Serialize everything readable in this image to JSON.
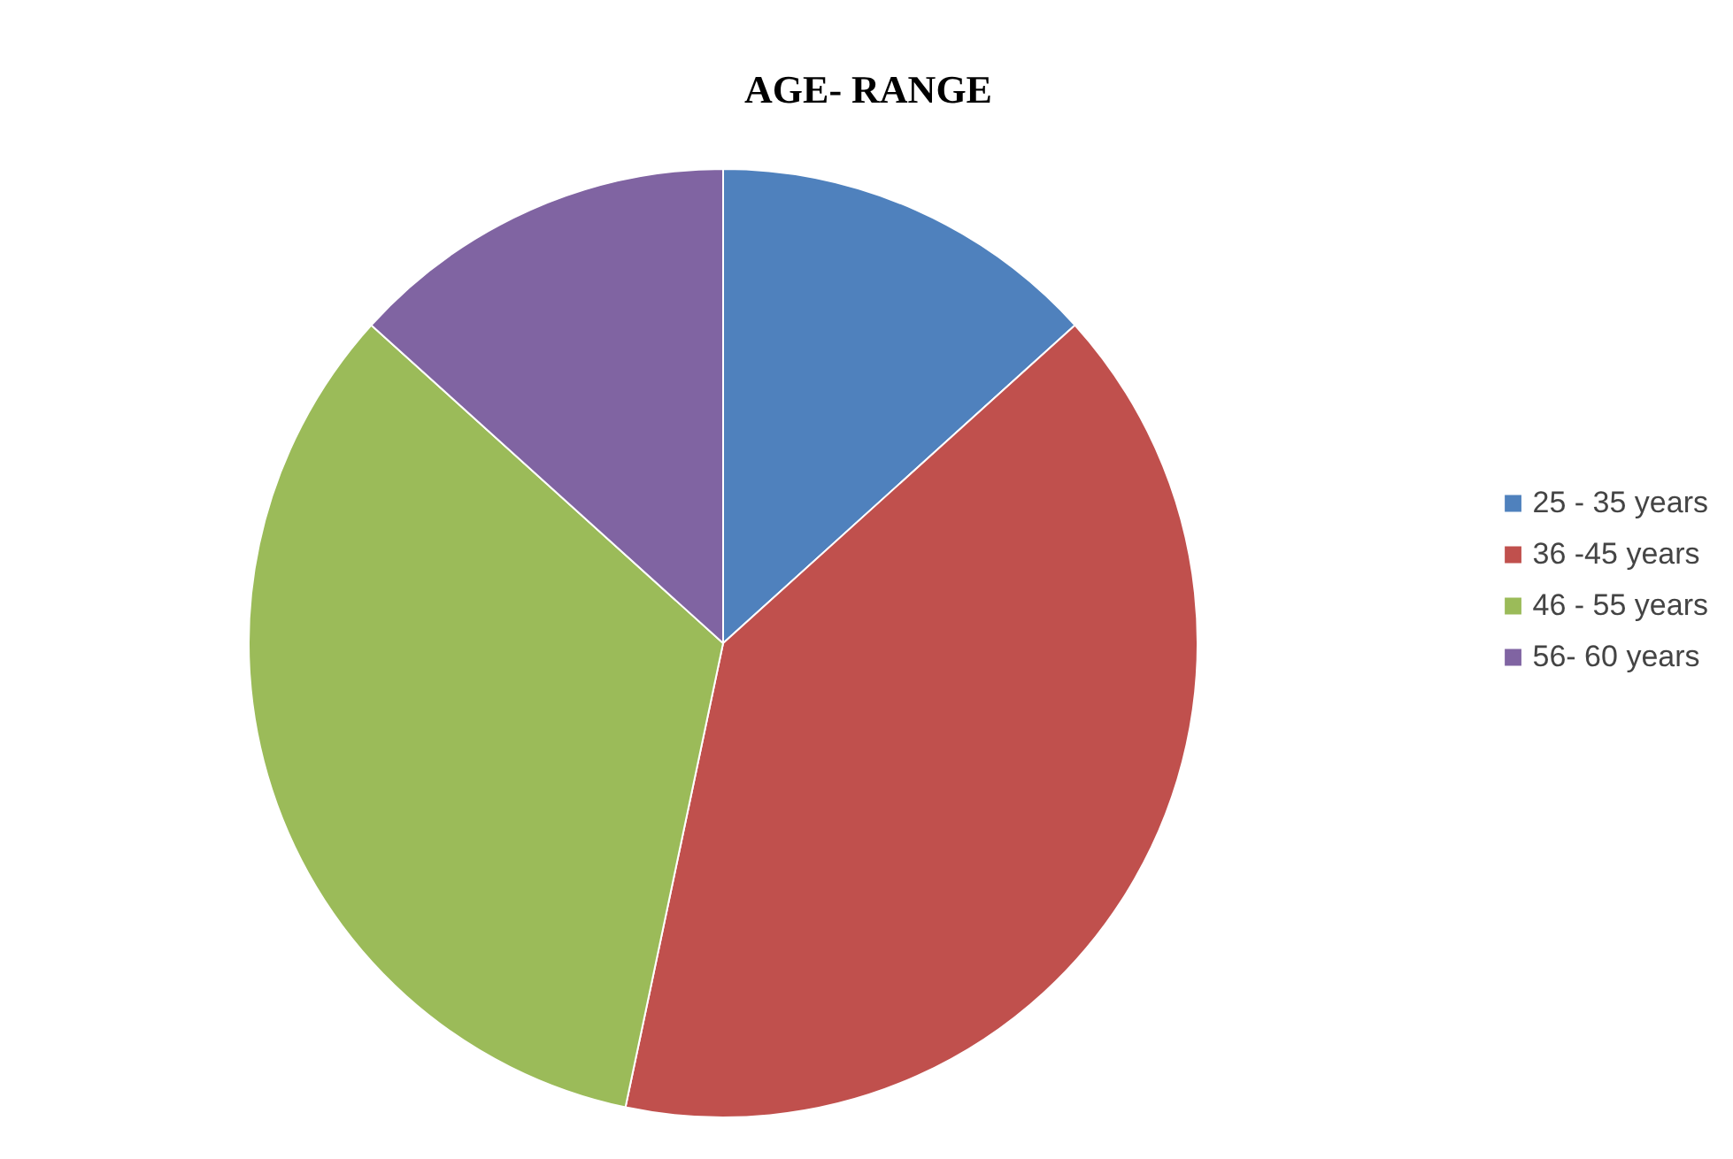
{
  "chart_data": {
    "type": "pie",
    "title": "AGE- RANGE",
    "categories": [
      "25 - 35 years",
      "36 -45 years",
      "46 - 55 years",
      "56- 60 years"
    ],
    "values": [
      13.3,
      40,
      33.4,
      13.3
    ],
    "colors": [
      "#4f81bd",
      "#c0504d",
      "#9bbb59",
      "#8064a2"
    ],
    "legend": "right"
  }
}
